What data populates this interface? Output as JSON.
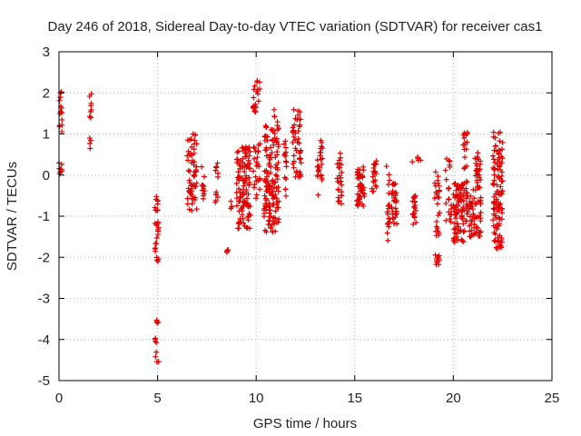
{
  "chart_data": {
    "type": "scatter",
    "title": "Day 246 of 2018, Sidereal Day-to-day VTEC variation (SDTVAR) for receiver cas1",
    "xlabel": "GPS time / hours",
    "ylabel": "SDTVAR / TECUs",
    "xlim": [
      0,
      25
    ],
    "ylim": [
      -5,
      3
    ],
    "x_ticks": [
      "0",
      "5",
      "10",
      "15",
      "20",
      "25"
    ],
    "y_ticks": [
      "3",
      "2",
      "1",
      "0",
      "-1",
      "-2",
      "-3",
      "-4",
      "-5"
    ],
    "grid": true,
    "marker": "plus",
    "series_color": "#e00000",
    "clusters": [
      {
        "x0": 0.0,
        "x1": 0.15,
        "ymin": 1.0,
        "ymax": 2.05,
        "n": 14
      },
      {
        "x0": 0.0,
        "x1": 0.15,
        "ymin": 0.0,
        "ymax": 0.35,
        "n": 8
      },
      {
        "x0": 1.55,
        "x1": 1.65,
        "ymin": 1.3,
        "ymax": 2.0,
        "n": 8
      },
      {
        "x0": 1.55,
        "x1": 1.65,
        "ymin": 0.6,
        "ymax": 0.9,
        "n": 4
      },
      {
        "x0": 4.85,
        "x1": 5.05,
        "ymin": -2.1,
        "ymax": -0.5,
        "n": 28
      },
      {
        "x0": 4.85,
        "x1": 5.05,
        "ymin": -3.6,
        "ymax": -3.4,
        "n": 4
      },
      {
        "x0": 4.85,
        "x1": 5.05,
        "ymin": -4.6,
        "ymax": -3.9,
        "n": 8
      },
      {
        "x0": 6.5,
        "x1": 7.0,
        "ymin": -0.95,
        "ymax": 1.0,
        "n": 60
      },
      {
        "x0": 7.2,
        "x1": 7.4,
        "ymin": -0.6,
        "ymax": 0.4,
        "n": 12
      },
      {
        "x0": 7.9,
        "x1": 8.1,
        "ymin": -0.9,
        "ymax": 0.35,
        "n": 12
      },
      {
        "x0": 8.5,
        "x1": 8.6,
        "ymin": -1.9,
        "ymax": -1.8,
        "n": 4
      },
      {
        "x0": 8.7,
        "x1": 8.8,
        "ymin": -0.9,
        "ymax": -0.6,
        "n": 4
      },
      {
        "x0": 9.0,
        "x1": 9.7,
        "ymin": -1.3,
        "ymax": 0.7,
        "n": 110
      },
      {
        "x0": 9.85,
        "x1": 10.2,
        "ymin": 1.5,
        "ymax": 2.4,
        "n": 20
      },
      {
        "x0": 9.85,
        "x1": 10.2,
        "ymin": -0.6,
        "ymax": 0.85,
        "n": 25
      },
      {
        "x0": 10.4,
        "x1": 11.15,
        "ymin": -1.4,
        "ymax": 1.35,
        "n": 140
      },
      {
        "x0": 10.9,
        "x1": 11.0,
        "ymin": 1.3,
        "ymax": 1.6,
        "n": 3
      },
      {
        "x0": 11.4,
        "x1": 11.55,
        "ymin": -0.7,
        "ymax": 0.9,
        "n": 15
      },
      {
        "x0": 11.85,
        "x1": 12.3,
        "ymin": -0.05,
        "ymax": 1.6,
        "n": 45
      },
      {
        "x0": 13.1,
        "x1": 13.4,
        "ymin": -0.5,
        "ymax": 0.9,
        "n": 25
      },
      {
        "x0": 14.1,
        "x1": 14.35,
        "ymin": -0.7,
        "ymax": 0.6,
        "n": 25
      },
      {
        "x0": 15.1,
        "x1": 15.5,
        "ymin": -0.8,
        "ymax": 0.2,
        "n": 45
      },
      {
        "x0": 15.85,
        "x1": 16.1,
        "ymin": -0.4,
        "ymax": 0.35,
        "n": 20
      },
      {
        "x0": 16.6,
        "x1": 16.8,
        "ymin": -1.7,
        "ymax": 0.3,
        "n": 20
      },
      {
        "x0": 16.85,
        "x1": 17.15,
        "ymin": -1.2,
        "ymax": -0.2,
        "n": 30
      },
      {
        "x0": 17.9,
        "x1": 18.1,
        "ymin": -1.25,
        "ymax": -0.5,
        "n": 20
      },
      {
        "x0": 17.9,
        "x1": 18.4,
        "ymin": 0.25,
        "ymax": 0.45,
        "n": 5
      },
      {
        "x0": 19.05,
        "x1": 19.3,
        "ymin": -2.2,
        "ymax": -1.9,
        "n": 10
      },
      {
        "x0": 19.05,
        "x1": 19.3,
        "ymin": -1.5,
        "ymax": 0.1,
        "n": 25
      },
      {
        "x0": 19.6,
        "x1": 19.9,
        "ymin": -1.3,
        "ymax": 0.5,
        "n": 20
      },
      {
        "x0": 20.0,
        "x1": 20.5,
        "ymin": -1.7,
        "ymax": -0.2,
        "n": 70
      },
      {
        "x0": 20.5,
        "x1": 20.75,
        "ymin": -1.4,
        "ymax": 1.05,
        "n": 40
      },
      {
        "x0": 20.8,
        "x1": 21.1,
        "ymin": -1.5,
        "ymax": -0.3,
        "n": 30
      },
      {
        "x0": 21.1,
        "x1": 21.4,
        "ymin": -1.5,
        "ymax": 0.6,
        "n": 50
      },
      {
        "x0": 22.0,
        "x1": 22.5,
        "ymin": -1.8,
        "ymax": 1.05,
        "n": 110
      }
    ]
  }
}
